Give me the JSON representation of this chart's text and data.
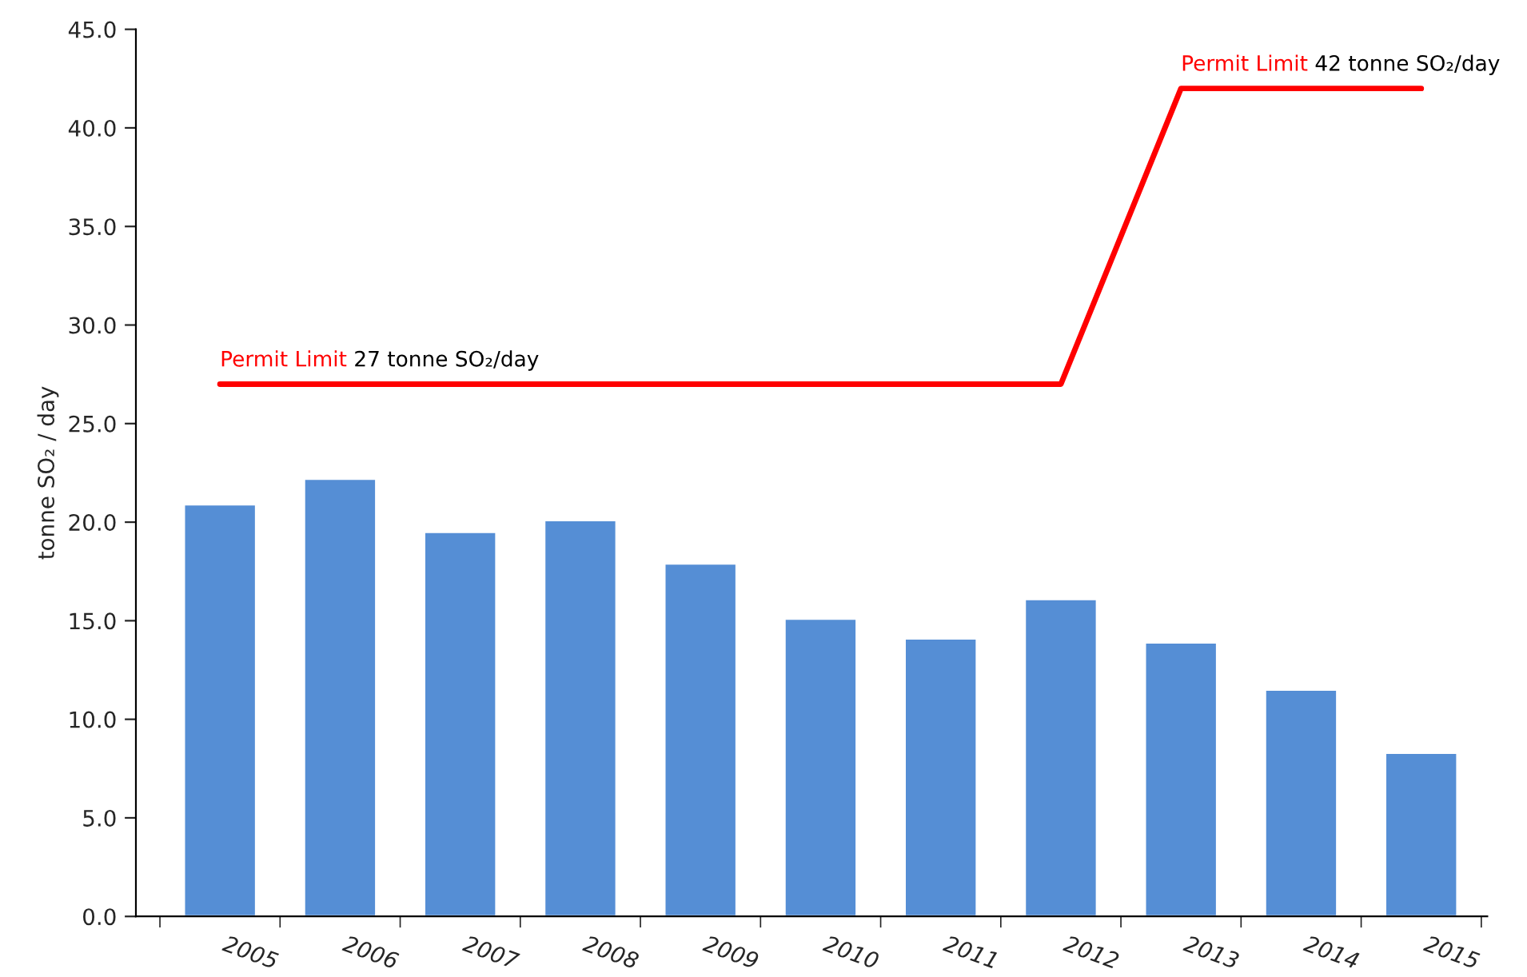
{
  "chart_data": {
    "type": "bar",
    "ylabel": "tonne SO₂ / day",
    "categories": [
      "2005",
      "2006",
      "2007",
      "2008",
      "2009",
      "2010",
      "2011",
      "2012",
      "2013",
      "2014",
      "2015"
    ],
    "series": [
      {
        "color": "#558ed5",
        "values": [
          20.9,
          22.2,
          19.5,
          20.1,
          17.9,
          15.1,
          14.1,
          16.1,
          13.9,
          11.5,
          8.3
        ]
      },
      {
        "type": "line",
        "name": "Permit Limit",
        "color": "#ff0000",
        "values": [
          27,
          27,
          27,
          27,
          27,
          27,
          27,
          27,
          42,
          42,
          42
        ]
      }
    ],
    "annotations": [
      "27 tonne SO₂/day",
      "42 tonne SO₂/day"
    ],
    "ylim": [
      0,
      45
    ],
    "yticks": [
      {
        "value": 0,
        "label": "0.0"
      },
      {
        "value": 5,
        "label": "5.0"
      },
      {
        "value": 10,
        "label": "10.0"
      },
      {
        "value": 15,
        "label": "15.0"
      },
      {
        "value": 20,
        "label": "20.0"
      },
      {
        "value": 25,
        "label": "25.0"
      },
      {
        "value": 30,
        "label": "30.0"
      },
      {
        "value": 35,
        "label": "35.0"
      },
      {
        "value": 40,
        "label": "40.0"
      },
      {
        "value": 45,
        "label": "45.0"
      }
    ],
    "grid": false,
    "legend": false
  }
}
